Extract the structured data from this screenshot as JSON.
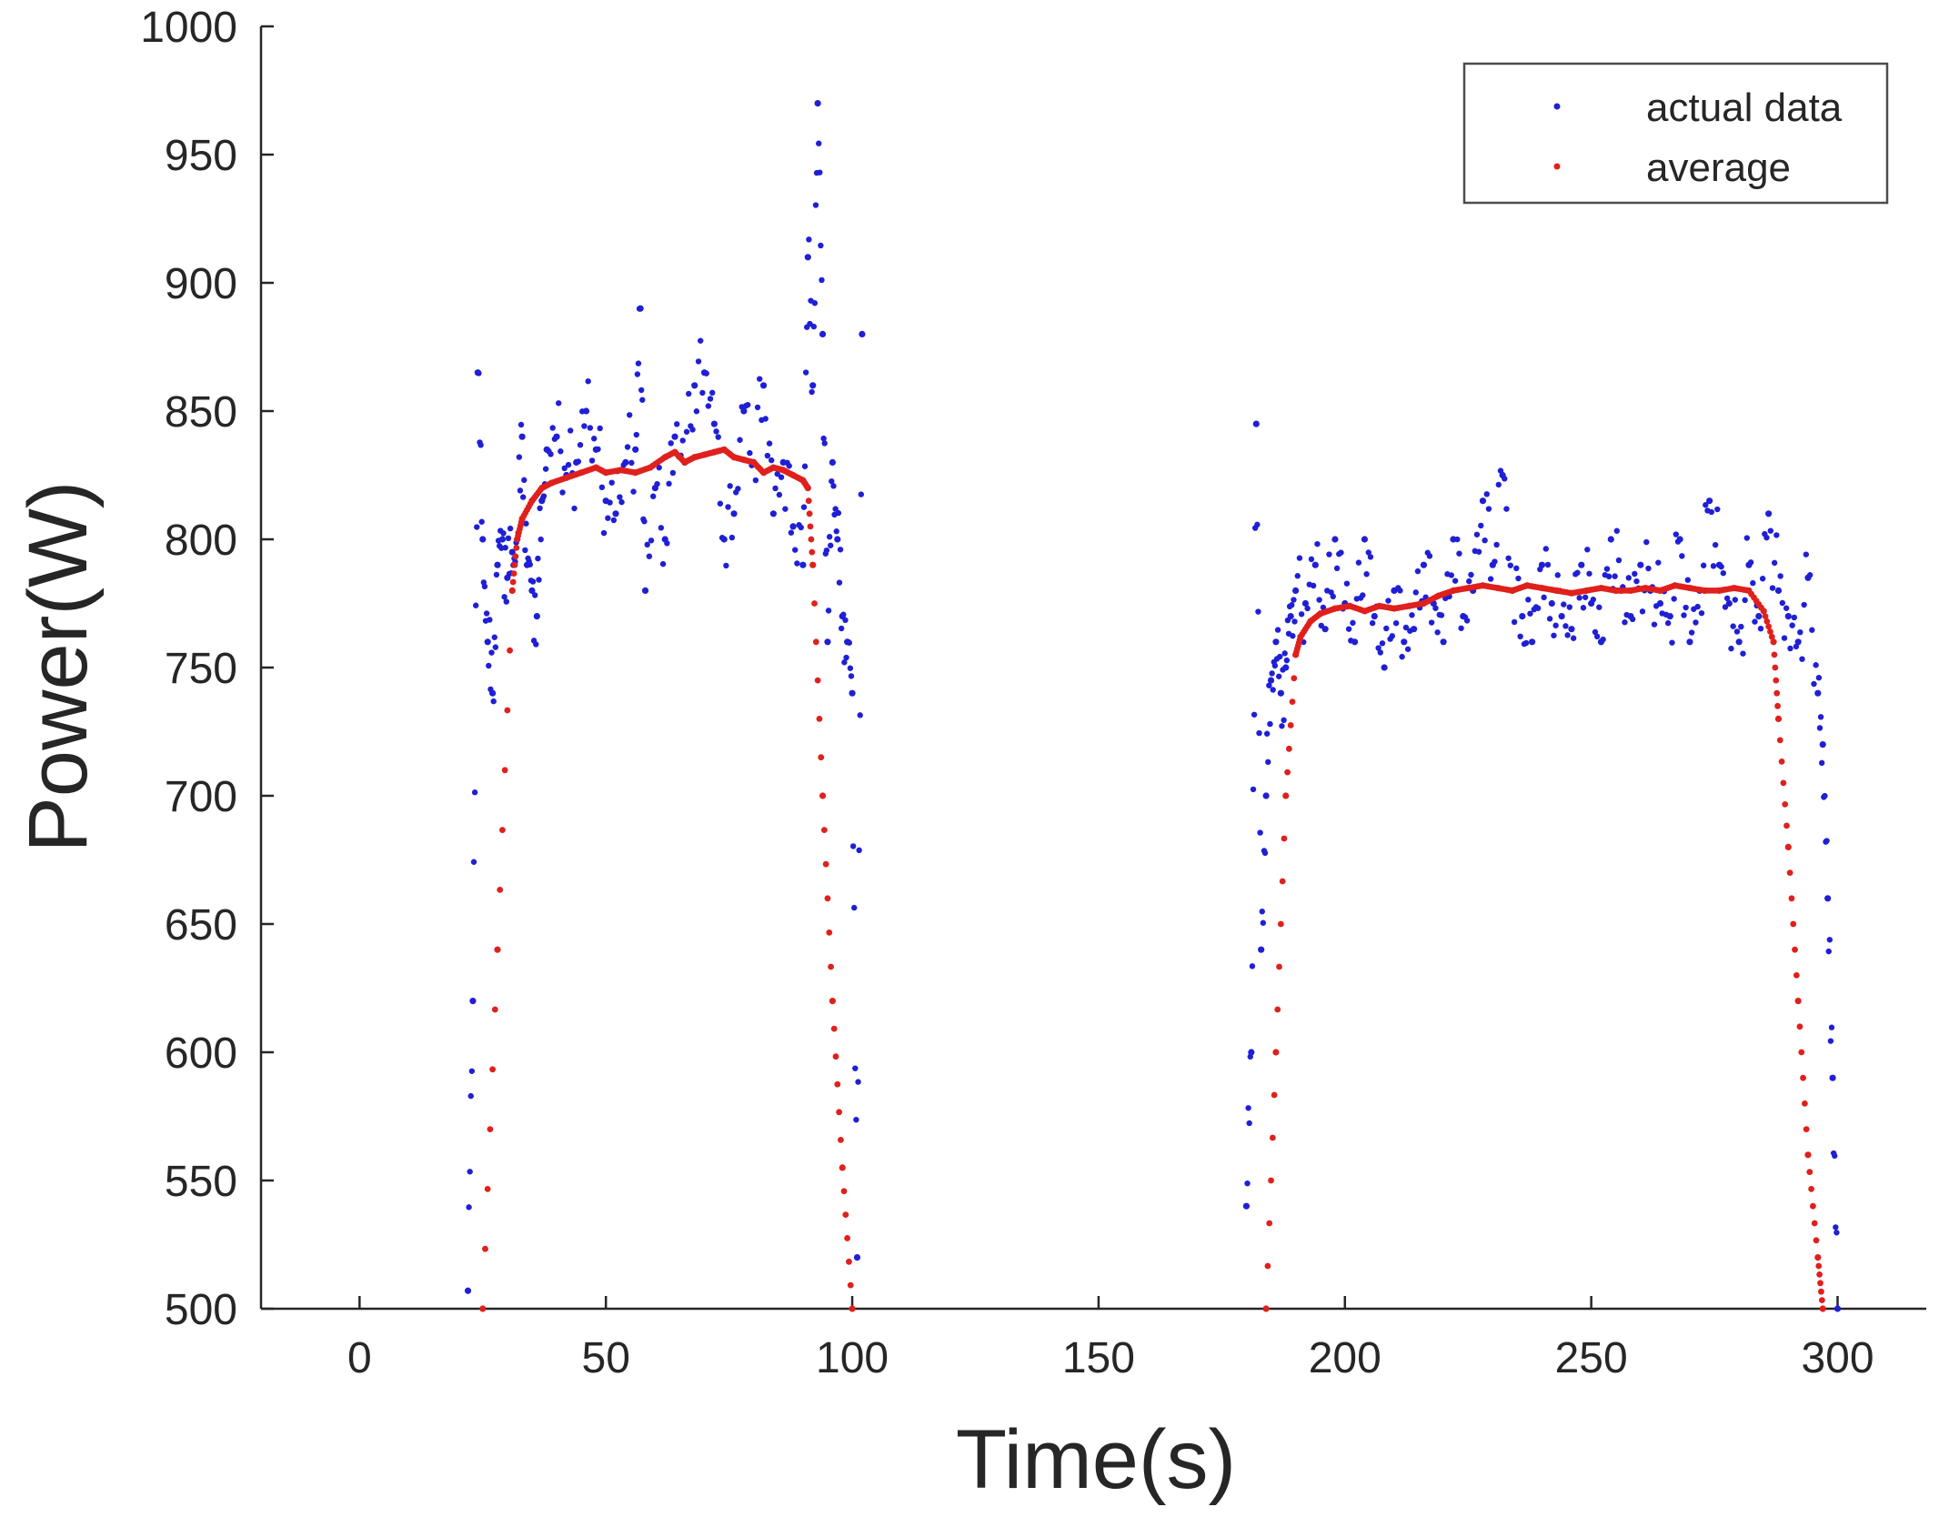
{
  "chart_data": {
    "type": "scatter",
    "title": "",
    "xlabel": "Time(s)",
    "ylabel": "Power(W)",
    "xlim": [
      -20,
      318
    ],
    "ylim": [
      500,
      1000
    ],
    "xticks": [
      0,
      50,
      100,
      150,
      200,
      250,
      300
    ],
    "yticks": [
      500,
      550,
      600,
      650,
      700,
      750,
      800,
      850,
      900,
      950,
      1000
    ],
    "grid": false,
    "legend_position": "top-right",
    "series": [
      {
        "name": "actual data",
        "color": "#1f1fd6",
        "marker": "dot",
        "segments": [
          {
            "t": [
              22,
              23,
              24,
              25,
              26,
              27,
              28,
              29,
              30,
              31,
              32,
              33,
              34,
              35,
              36,
              37,
              38,
              40,
              42,
              44,
              46,
              48,
              50,
              52,
              54,
              56,
              57,
              58,
              60,
              62,
              64,
              66,
              68,
              70,
              72,
              74,
              76,
              78,
              80,
              82,
              84,
              86,
              88,
              90,
              91,
              92,
              93,
              94,
              95,
              96,
              97,
              98,
              99,
              100,
              101,
              102
            ],
            "y": [
              507,
              620,
              865,
              800,
              760,
              740,
              790,
              800,
              785,
              795,
              800,
              840,
              790,
              780,
              770,
              815,
              835,
              840,
              825,
              830,
              850,
              835,
              815,
              810,
              830,
              835,
              890,
              780,
              820,
              800,
              840,
              830,
              860,
              865,
              845,
              800,
              810,
              850,
              830,
              860,
              810,
              830,
              805,
              790,
              910,
              860,
              970,
              880,
              760,
              830,
              800,
              770,
              760,
              740,
              520,
              880
            ]
          },
          {
            "t": [
              180,
              181,
              182,
              183,
              184,
              185,
              186,
              187,
              188,
              189,
              190,
              192,
              194,
              196,
              198,
              200,
              202,
              204,
              206,
              208,
              210,
              212,
              214,
              216,
              218,
              220,
              222,
              224,
              226,
              228,
              230,
              232,
              234,
              236,
              238,
              240,
              242,
              244,
              246,
              248,
              250,
              252,
              254,
              256,
              258,
              260,
              262,
              264,
              266,
              268,
              270,
              272,
              274,
              276,
              278,
              280,
              282,
              284,
              286,
              288,
              290,
              292,
              294,
              296,
              297,
              298,
              299,
              300
            ],
            "y": [
              540,
              600,
              845,
              640,
              700,
              745,
              760,
              740,
              750,
              770,
              780,
              775,
              790,
              765,
              800,
              775,
              760,
              800,
              770,
              750,
              780,
              760,
              765,
              790,
              775,
              760,
              800,
              770,
              780,
              815,
              790,
              825,
              780,
              770,
              760,
              790,
              775,
              770,
              765,
              790,
              775,
              760,
              800,
              780,
              770,
              790,
              780,
              775,
              770,
              800,
              760,
              780,
              815,
              790,
              775,
              760,
              790,
              770,
              810,
              780,
              770,
              760,
              785,
              740,
              720,
              660,
              590,
              500
            ]
          }
        ]
      },
      {
        "name": "average",
        "color": "#e0201c",
        "marker": "dot",
        "segments": [
          {
            "t": [
              25,
              28,
              31,
              32,
              33,
              35,
              37,
              39,
              42,
              45,
              48,
              50,
              53,
              56,
              59,
              62,
              64,
              66,
              68,
              70,
              72,
              74,
              76,
              78,
              80,
              82,
              84,
              86,
              88,
              90,
              91,
              92,
              94,
              96,
              98,
              100
            ],
            "y": [
              500,
              640,
              780,
              800,
              808,
              815,
              820,
              822,
              824,
              826,
              828,
              826,
              827,
              826,
              828,
              832,
              834,
              830,
              832,
              833,
              834,
              835,
              832,
              831,
              830,
              826,
              828,
              827,
              825,
              823,
              820,
              790,
              700,
              620,
              555,
              500
            ]
          },
          {
            "t": [
              184,
              186,
              188,
              190,
              191,
              193,
              195,
              198,
              201,
              204,
              207,
              210,
              213,
              216,
              219,
              222,
              225,
              228,
              231,
              234,
              237,
              240,
              243,
              246,
              249,
              252,
              255,
              258,
              261,
              264,
              267,
              270,
              273,
              276,
              279,
              282,
              285,
              287,
              288,
              290,
              292,
              294,
              296,
              297
            ],
            "y": [
              500,
              600,
              700,
              755,
              762,
              768,
              771,
              773,
              774,
              772,
              774,
              773,
              774,
              775,
              778,
              780,
              781,
              782,
              781,
              780,
              782,
              781,
              780,
              779,
              780,
              781,
              780,
              780,
              781,
              780,
              782,
              781,
              780,
              780,
              781,
              780,
              772,
              760,
              730,
              680,
              620,
              560,
              520,
              500
            ]
          }
        ]
      }
    ]
  }
}
